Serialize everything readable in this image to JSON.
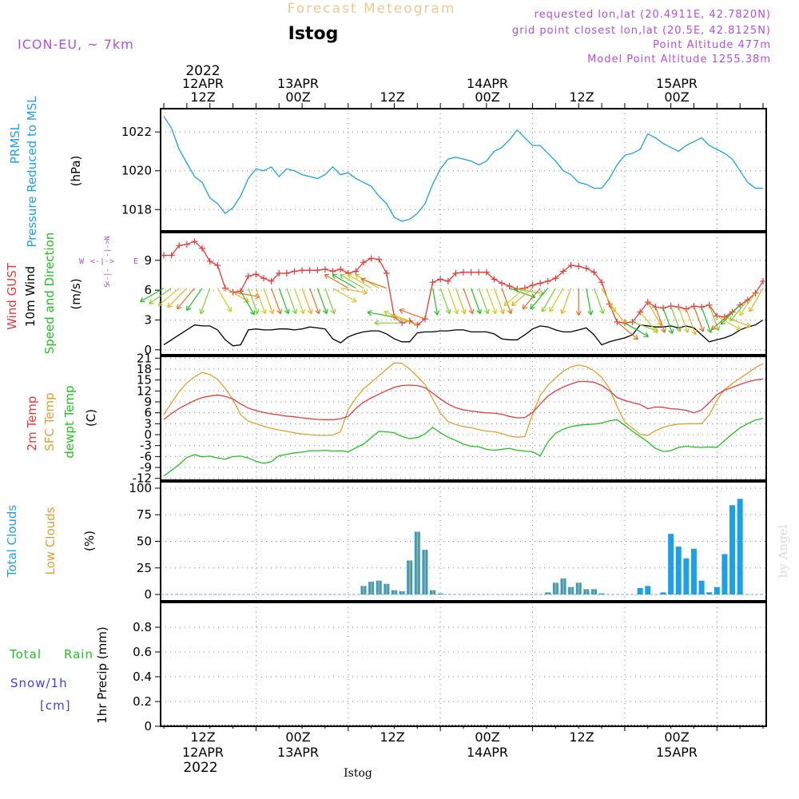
{
  "header": {
    "title": "Forecast Meteogram",
    "location": "Istog",
    "model": "ICON-EU, ~ 7km",
    "requested": "requested lon,lat (20.4911E, 42.7820N)",
    "grid_point": "grid point closest lon,lat (20.5E, 42.8125N)",
    "point_altitude": "Point Altitude 477m",
    "model_altitude": "Model Point Altitude 1255.38m",
    "footer_location": "Istog",
    "watermark": "by Angel"
  },
  "colors": {
    "pressure": "#1ea0e6",
    "gust": "#e83a3a",
    "wind": "#000000",
    "t2m": "#e83a3a",
    "sfc": "#e0a030",
    "dewpt": "#22c022",
    "total_clouds": "#1ea0e6",
    "low_clouds": "#e0a030",
    "rain": "#22c022",
    "snow": "#4040e0",
    "label_purple": "#b050e0"
  },
  "time_axis": {
    "top_year": "2022",
    "top_days": [
      "12APR",
      "13APR",
      "14APR",
      "15APR"
    ],
    "hour_labels": [
      "12Z",
      "00Z",
      "12Z",
      "00Z",
      "12Z",
      "00Z"
    ],
    "bottom_days": [
      "12APR",
      "13APR",
      "14APR",
      "15APR"
    ],
    "bottom_year": "2022"
  },
  "panel_labels": {
    "pressure": [
      "PRMSL",
      "Pressure Reduced to MSL"
    ],
    "pressure_unit": "(hPa)",
    "wind": [
      "Wind GUST",
      "10m Wind",
      "Speed and Direction"
    ],
    "wind_unit": "(m/s)",
    "compass_n": "N",
    "compass_s": "S",
    "compass_w": "W",
    "compass_e": "E",
    "temp": [
      "2m Temp",
      "SFC Temp",
      "dewpt Temp"
    ],
    "temp_unit": "(C)",
    "clouds": [
      "Total Clouds",
      "Low Clouds"
    ],
    "clouds_unit": "(%)",
    "precip_total": "Total",
    "precip_rain": "Rain",
    "precip_snow": "Snow/1h",
    "precip_cm": "[cm]",
    "precip_unit": "1hr Precip (mm)"
  },
  "chart_data": [
    {
      "type": "line",
      "name": "pressure",
      "ylim": [
        1016.9,
        1023.2
      ],
      "yticks": [
        "1018",
        "1020",
        "1022"
      ],
      "ytick_values": [
        1018,
        1020,
        1022
      ],
      "x_hours": [
        0,
        1,
        2,
        3,
        4,
        5,
        6,
        7,
        8,
        9,
        10,
        11,
        12,
        13,
        14,
        15,
        16,
        17,
        18,
        19,
        20,
        21,
        22,
        23,
        24,
        25,
        26,
        27,
        28,
        29,
        30,
        31,
        32,
        33,
        34,
        35,
        36,
        37,
        38,
        39,
        40,
        41,
        42,
        43,
        44,
        45,
        46,
        47,
        48,
        49,
        50,
        51,
        52,
        53,
        54,
        55,
        56,
        57,
        58,
        59,
        60,
        61,
        62,
        63,
        64,
        65,
        66,
        67,
        68,
        69,
        70,
        71,
        72,
        73,
        74,
        75,
        76,
        77,
        78
      ],
      "series": [
        {
          "values": [
            1022.8,
            1022.2,
            1021.1,
            1020.4,
            1019.7,
            1019.4,
            1018.6,
            1018.3,
            1017.8,
            1018.1,
            1018.7,
            1019.6,
            1020.1,
            1020.0,
            1020.2,
            1019.7,
            1020.1,
            1020.0,
            1019.8,
            1019.7,
            1019.6,
            1019.8,
            1020.2,
            1019.8,
            1019.9,
            1019.6,
            1019.4,
            1019.2,
            1018.7,
            1018.3,
            1017.6,
            1017.4,
            1017.5,
            1017.8,
            1018.3,
            1019.3,
            1020.1,
            1020.6,
            1020.7,
            1020.6,
            1020.5,
            1020.3,
            1020.5,
            1021.0,
            1021.2,
            1021.6,
            1022.1,
            1021.7,
            1021.3,
            1021.3,
            1020.9,
            1020.5,
            1020.0,
            1019.8,
            1019.4,
            1019.3,
            1019.1,
            1019.1,
            1019.6,
            1020.3,
            1020.8,
            1020.9,
            1021.1,
            1021.9,
            1021.7,
            1021.4,
            1021.2,
            1021.0,
            1021.3,
            1021.5,
            1021.7,
            1021.3,
            1021.1,
            1020.9,
            1020.6,
            1020.0,
            1019.4,
            1019.1,
            1019.1
          ]
        }
      ]
    },
    {
      "type": "line",
      "name": "wind",
      "ylim": [
        -0.5,
        11.8
      ],
      "yticks": [
        "0",
        "3",
        "6",
        "9"
      ],
      "ytick_values": [
        0,
        3,
        6,
        9
      ],
      "gust_values": [
        9.5,
        9.5,
        10.5,
        10.6,
        10.9,
        10.2,
        8.9,
        8.5,
        6.2,
        5.8,
        5.9,
        7.4,
        7.6,
        7.2,
        6.9,
        7.7,
        7.7,
        7.9,
        8.0,
        8.0,
        8.0,
        8.1,
        7.9,
        8.1,
        7.7,
        7.9,
        8.8,
        9.2,
        9.1,
        7.7,
        3.3,
        2.7,
        2.9,
        2.5,
        3.1,
        6.8,
        7.1,
        6.9,
        7.7,
        7.8,
        7.8,
        7.8,
        7.8,
        7.1,
        6.7,
        6.4,
        6.1,
        6.2,
        6.5,
        6.7,
        6.9,
        7.2,
        7.9,
        8.5,
        8.4,
        8.2,
        7.8,
        6.8,
        4.6,
        2.8,
        2.7,
        2.8,
        3.8,
        4.8,
        4.3,
        4.2,
        4.4,
        4.3,
        4.1,
        4.4,
        4.3,
        4.5,
        3.4,
        3.3,
        3.8,
        4.5,
        5.0,
        5.7,
        6.9
      ],
      "wind_values": [
        0.5,
        1.0,
        1.5,
        2.0,
        2.5,
        2.4,
        2.4,
        2.0,
        1.0,
        0.4,
        0.5,
        2.0,
        2.1,
        2.0,
        2.0,
        2.1,
        2.1,
        2.0,
        2.1,
        2.3,
        2.2,
        2.1,
        1.1,
        0.7,
        1.3,
        1.6,
        1.8,
        1.9,
        1.9,
        1.6,
        1.1,
        0.8,
        0.8,
        1.7,
        1.8,
        1.8,
        1.9,
        1.9,
        2.0,
        2.0,
        1.8,
        1.8,
        1.8,
        1.6,
        1.1,
        1.0,
        1.0,
        1.5,
        2.1,
        2.4,
        2.3,
        2.0,
        1.8,
        1.8,
        2.0,
        2.2,
        1.5,
        0.5,
        0.8,
        1.0,
        1.2,
        1.5,
        2.5,
        2.4,
        2.3,
        2.3,
        2.4,
        2.2,
        2.4,
        2.2,
        1.5,
        0.8,
        1.0,
        1.2,
        1.5,
        2.0,
        2.3,
        2.5,
        3.0
      ],
      "arrow_dir_deg": [
        240,
        235,
        230,
        225,
        220,
        215,
        200,
        150,
        120,
        100,
        150,
        160,
        160,
        160,
        160,
        160,
        160,
        160,
        160,
        160,
        160,
        160,
        120,
        100,
        300,
        300,
        300,
        300,
        300,
        290,
        280,
        270,
        290,
        290,
        290,
        170,
        160,
        160,
        160,
        160,
        160,
        160,
        160,
        160,
        160,
        110,
        100,
        230,
        230,
        220,
        220,
        210,
        210,
        200,
        180,
        170,
        160,
        150,
        140,
        130,
        120,
        110,
        140,
        150,
        160,
        160,
        160,
        160,
        160,
        160,
        160,
        160,
        120,
        110,
        230,
        225,
        220,
        215,
        210
      ]
    },
    {
      "type": "line",
      "name": "temperature",
      "ylim": [
        -12.5,
        21.5
      ],
      "yticks": [
        "-12",
        "-9",
        "-6",
        "-3",
        "0",
        "3",
        "6",
        "9",
        "12",
        "15",
        "18",
        "21"
      ],
      "ytick_values": [
        -12,
        -9,
        -6,
        -3,
        0,
        3,
        6,
        9,
        12,
        15,
        18,
        21
      ],
      "series": [
        {
          "name": "2m Temp",
          "values": [
            4.2,
            5.8,
            7.2,
            8.3,
            9.4,
            10.2,
            10.6,
            10.9,
            10.5,
            9.8,
            8.4,
            7.3,
            6.6,
            6.1,
            5.7,
            5.4,
            5.1,
            4.9,
            4.6,
            4.4,
            4.2,
            4.1,
            4.1,
            4.4,
            5.0,
            7.2,
            8.9,
            10.1,
            11.1,
            12.1,
            13.0,
            13.5,
            13.6,
            13.5,
            12.9,
            11.4,
            9.8,
            8.4,
            7.4,
            6.8,
            6.5,
            6.2,
            6.0,
            5.9,
            5.6,
            5.0,
            4.6,
            4.7,
            6.1,
            8.4,
            10.6,
            12.0,
            13.1,
            13.9,
            14.6,
            14.6,
            14.4,
            13.5,
            12.1,
            10.2,
            9.4,
            8.8,
            8.3,
            7.1,
            7.6,
            7.5,
            7.1,
            7.0,
            6.7,
            6.0,
            6.8,
            8.8,
            11.0,
            12.2,
            13.0,
            13.8,
            14.5,
            15.0,
            15.3
          ]
        },
        {
          "name": "SFC Temp",
          "values": [
            5.5,
            8.7,
            11.8,
            14.2,
            15.9,
            17.1,
            16.5,
            15.2,
            12.7,
            9.6,
            5.5,
            3.7,
            3.0,
            2.3,
            1.7,
            1.3,
            0.9,
            0.5,
            0.2,
            0.0,
            -0.2,
            -0.2,
            -0.1,
            0.8,
            6.9,
            10.0,
            12.6,
            14.3,
            16.2,
            18.0,
            19.7,
            19.6,
            18.0,
            16.0,
            13.8,
            9.8,
            6.0,
            3.6,
            2.8,
            2.2,
            1.9,
            1.4,
            1.0,
            0.8,
            0.3,
            -0.4,
            -0.7,
            -0.5,
            5.6,
            10.8,
            13.6,
            15.6,
            17.4,
            18.6,
            19.1,
            18.7,
            17.5,
            15.7,
            12.7,
            7.7,
            3.5,
            1.8,
            0.1,
            -0.2,
            1.1,
            2.0,
            2.6,
            2.9,
            3.0,
            3.0,
            3.0,
            5.4,
            9.5,
            12.4,
            14.0,
            15.5,
            16.9,
            18.4,
            19.5
          ]
        },
        {
          "name": "dewpt Temp",
          "values": [
            -11.4,
            -9.8,
            -8.2,
            -6.3,
            -5.5,
            -6.1,
            -5.9,
            -6.4,
            -6.7,
            -6.0,
            -5.9,
            -6.4,
            -7.3,
            -7.9,
            -7.4,
            -5.8,
            -5.4,
            -5.0,
            -4.8,
            -4.4,
            -4.4,
            -4.3,
            -4.5,
            -4.4,
            -4.7,
            -3.6,
            -2.6,
            -0.8,
            0.9,
            0.8,
            0.5,
            -0.5,
            -1.1,
            -0.8,
            0.2,
            2.0,
            0.5,
            -0.7,
            -1.6,
            -2.6,
            -3.2,
            -3.3,
            -4.0,
            -4.3,
            -4.0,
            -3.8,
            -4.3,
            -4.5,
            -4.7,
            -5.8,
            -2.0,
            0.4,
            1.5,
            2.2,
            2.6,
            2.8,
            2.9,
            3.2,
            3.8,
            4.1,
            2.6,
            1.0,
            -0.5,
            -2.0,
            -3.8,
            -4.6,
            -4.4,
            -3.5,
            -3.2,
            -3.4,
            -3.5,
            -3.4,
            -3.5,
            -1.6,
            0.2,
            1.9,
            3.0,
            4.0,
            4.5
          ]
        }
      ]
    },
    {
      "type": "bar",
      "name": "clouds",
      "ylim": [
        -6,
        106
      ],
      "yticks": [
        "0",
        "25",
        "50",
        "75",
        "100"
      ],
      "ytick_values": [
        0,
        25,
        50,
        75,
        100
      ],
      "x_hours": [
        26,
        27,
        28,
        29,
        30,
        31,
        32,
        33,
        34,
        35,
        36,
        50,
        51,
        52,
        53,
        54,
        55,
        56,
        57,
        62,
        63,
        65,
        66,
        67,
        68,
        69,
        70,
        71,
        72,
        73,
        74,
        75,
        76,
        77,
        78
      ],
      "series": [
        {
          "name": "Total Clouds",
          "values": [
            8,
            12,
            13,
            10,
            4,
            3,
            32,
            59,
            42,
            4,
            1,
            2,
            11,
            15,
            7,
            11,
            5,
            5,
            1,
            6,
            8,
            2,
            57,
            45,
            34,
            43,
            13,
            2,
            7,
            38,
            84,
            90,
            0,
            0,
            0
          ]
        },
        {
          "name": "Low Clouds",
          "values": [
            8,
            12,
            13,
            10,
            4,
            3,
            32,
            59,
            42,
            4,
            1,
            2,
            11,
            15,
            7,
            11,
            5,
            5,
            0,
            0,
            0,
            0,
            0,
            0,
            0,
            0,
            0,
            0,
            0,
            0,
            0,
            0,
            0,
            0,
            0
          ]
        }
      ]
    },
    {
      "type": "bar",
      "name": "precip",
      "ylim": [
        0,
        1.0
      ],
      "yticks": [
        "0",
        "0.2",
        "0.4",
        "0.6",
        "0.8"
      ],
      "ytick_values": [
        0,
        0.2,
        0.4,
        0.6,
        0.8
      ],
      "series": [
        {
          "name": "Total Rain",
          "values": []
        },
        {
          "name": "Snow/1h",
          "values": []
        }
      ]
    }
  ]
}
